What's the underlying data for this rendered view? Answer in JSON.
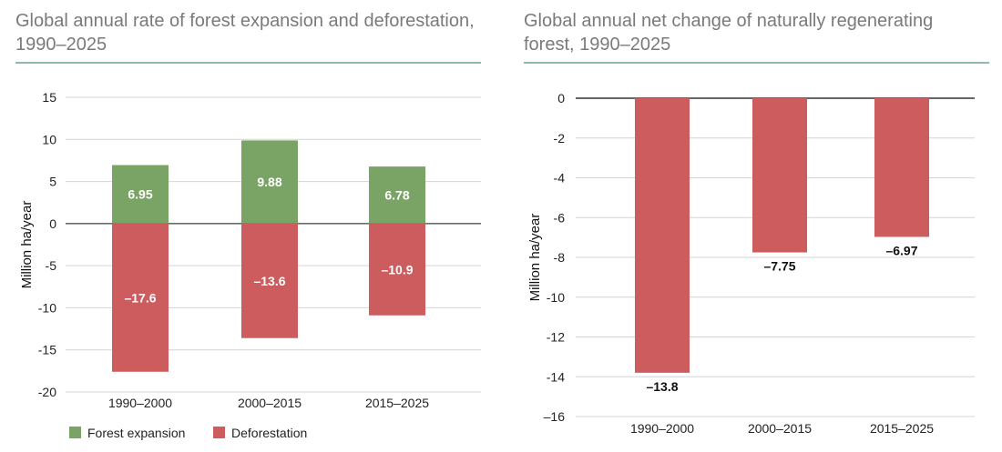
{
  "colors": {
    "forest_expansion": "#7aa466",
    "deforestation": "#cd5c5e",
    "title": "#7a7a7a",
    "rule": "#8fb8b0"
  },
  "chart_data": [
    {
      "type": "bar",
      "stacked": "diverging",
      "title": "Global annual rate of forest expansion and deforestation, 1990–2025",
      "ylabel": "Million ha/year",
      "xlabel": "",
      "ylim": [
        -20,
        15
      ],
      "yticks": [
        15,
        10,
        5,
        0,
        -5,
        -10,
        -15,
        -20
      ],
      "ytick_labels": [
        "15",
        "10",
        "5",
        "0",
        "-5",
        "-10",
        "-15",
        "-20"
      ],
      "grid": true,
      "legend": "bottom-left",
      "categories": [
        "1990–2000",
        "2000–2015",
        "2015–2025"
      ],
      "series": [
        {
          "name": "Forest expansion",
          "values": [
            6.95,
            9.88,
            6.78
          ],
          "labels": [
            "6.95",
            "9.88",
            "6.78"
          ]
        },
        {
          "name": "Deforestation",
          "values": [
            -17.6,
            -13.6,
            -10.9
          ],
          "labels": [
            "–17.6",
            "–13.6",
            "–10.9"
          ]
        }
      ]
    },
    {
      "type": "bar",
      "title": "Global annual net change of naturally regenerating forest, 1990–2025",
      "ylabel": "Million ha/year",
      "xlabel": "",
      "ylim": [
        -16,
        0
      ],
      "yticks": [
        0,
        -2,
        -4,
        -6,
        -8,
        -10,
        -12,
        -14,
        -16
      ],
      "ytick_labels": [
        "0",
        "-2",
        "-4",
        "-6",
        "-8",
        "-10",
        "-12",
        "-14",
        "–16"
      ],
      "grid": true,
      "categories": [
        "1990–2000",
        "2000–2015",
        "2015–2025"
      ],
      "series": [
        {
          "values": [
            -13.8,
            -7.75,
            -6.97
          ],
          "labels": [
            "–13.8",
            "–7.75",
            "–6.97"
          ]
        }
      ]
    }
  ]
}
